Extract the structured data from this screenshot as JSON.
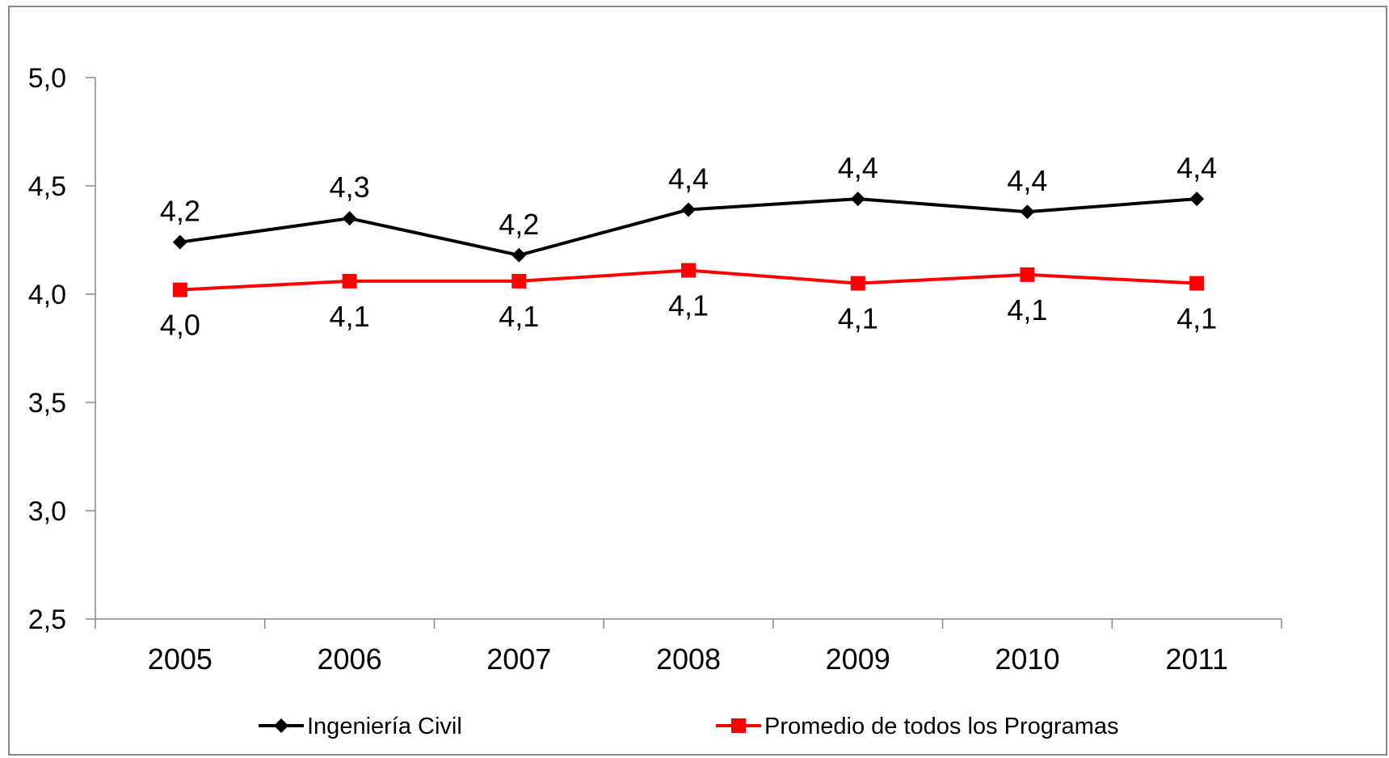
{
  "chart_data": {
    "type": "line",
    "title": "",
    "xlabel": "",
    "ylabel": "",
    "categories": [
      "2005",
      "2006",
      "2007",
      "2008",
      "2009",
      "2010",
      "2011"
    ],
    "ylim": [
      2.5,
      5.0
    ],
    "y_ticks": [
      2.5,
      3.0,
      3.5,
      4.0,
      4.5,
      5.0
    ],
    "y_tick_labels": [
      "2,5",
      "3,0",
      "3,5",
      "4,0",
      "4,5",
      "5,0"
    ],
    "grid": false,
    "legend_position": "bottom",
    "series": [
      {
        "name": "Ingeniería Civil",
        "color": "#000000",
        "marker": "diamond",
        "values": [
          4.24,
          4.35,
          4.18,
          4.39,
          4.44,
          4.38,
          4.44
        ],
        "data_labels": [
          "4,2",
          "4,3",
          "4,2",
          "4,4",
          "4,4",
          "4,4",
          "4,4"
        ],
        "label_side": "above"
      },
      {
        "name": "Promedio de todos los Programas",
        "color": "#ff0000",
        "marker": "square",
        "values": [
          4.02,
          4.06,
          4.06,
          4.11,
          4.05,
          4.09,
          4.05
        ],
        "data_labels": [
          "4,0",
          "4,1",
          "4,1",
          "4,1",
          "4,1",
          "4,1",
          "4,1"
        ],
        "label_side": "below"
      }
    ]
  }
}
